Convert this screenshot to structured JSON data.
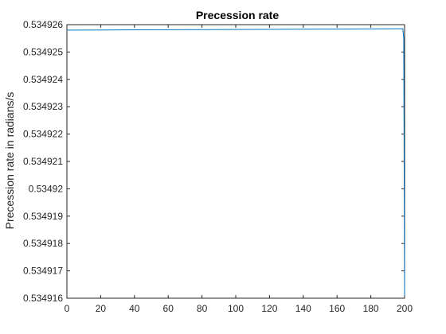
{
  "chart_data": {
    "type": "line",
    "title": "Precession rate",
    "xlabel": "",
    "ylabel": "Precession rate in radians/s",
    "xlim": [
      0,
      200
    ],
    "ylim": [
      0.534916,
      0.534926
    ],
    "x_ticks": [
      0,
      20,
      40,
      60,
      80,
      100,
      120,
      140,
      160,
      180,
      200
    ],
    "x_tick_labels": [
      "0",
      "20",
      "40",
      "60",
      "80",
      "100",
      "120",
      "140",
      "160",
      "180",
      "200"
    ],
    "y_ticks": [
      0.534916,
      0.534917,
      0.534918,
      0.534919,
      0.53492,
      0.534921,
      0.534922,
      0.534923,
      0.534924,
      0.534925,
      0.534926
    ],
    "y_tick_labels": [
      "0.534916",
      "0.534917",
      "0.534918",
      "0.534919",
      "0.53492",
      "0.534921",
      "0.534922",
      "0.534923",
      "0.534924",
      "0.534925",
      "0.534926"
    ],
    "grid": false,
    "series": [
      {
        "color": "#0072bd",
        "x": [
          0,
          40,
          80,
          120,
          160,
          198,
          199.0,
          199.5,
          200
        ],
        "y": [
          0.5349258,
          0.53492581,
          0.53492582,
          0.53492583,
          0.53492584,
          0.53492585,
          0.53492585,
          0.5349255,
          0.5349161
        ]
      }
    ]
  }
}
